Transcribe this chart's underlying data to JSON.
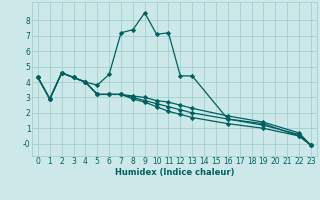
{
  "xlabel": "Humidex (Indice chaleur)",
  "background_color": "#cce8e8",
  "line_color": "#006060",
  "grid_color": "#99cccc",
  "xlim": [
    -0.5,
    23.5
  ],
  "ylim": [
    -0.8,
    9.2
  ],
  "xticks": [
    0,
    1,
    2,
    3,
    4,
    5,
    6,
    7,
    8,
    9,
    10,
    11,
    12,
    13,
    14,
    15,
    16,
    17,
    18,
    19,
    20,
    21,
    22,
    23
  ],
  "yticks": [
    0,
    1,
    2,
    3,
    4,
    5,
    6,
    7,
    8
  ],
  "ytick_labels": [
    "-0",
    "1",
    "2",
    "3",
    "4",
    "5",
    "6",
    "7",
    "8"
  ],
  "series": [
    {
      "x": [
        0,
        1,
        2,
        3,
        4,
        5,
        6,
        7,
        8,
        9,
        10,
        11,
        12,
        13,
        16,
        19,
        22,
        23
      ],
      "y": [
        4.3,
        2.9,
        4.6,
        4.3,
        4.0,
        3.8,
        4.5,
        7.2,
        7.4,
        8.5,
        7.1,
        7.2,
        4.4,
        4.4,
        1.6,
        1.3,
        0.5,
        -0.1
      ]
    },
    {
      "x": [
        0,
        1,
        2,
        3,
        4,
        5,
        6,
        7,
        8,
        9,
        10,
        11,
        12,
        13,
        16,
        19,
        22,
        23
      ],
      "y": [
        4.3,
        2.9,
        4.6,
        4.3,
        4.0,
        3.2,
        3.2,
        3.2,
        3.1,
        3.0,
        2.8,
        2.7,
        2.5,
        2.3,
        1.8,
        1.4,
        0.7,
        -0.1
      ]
    },
    {
      "x": [
        0,
        1,
        2,
        3,
        4,
        5,
        6,
        7,
        8,
        9,
        10,
        11,
        12,
        13,
        16,
        19,
        22,
        23
      ],
      "y": [
        4.3,
        2.9,
        4.6,
        4.3,
        4.0,
        3.2,
        3.2,
        3.2,
        3.0,
        2.8,
        2.6,
        2.4,
        2.2,
        2.0,
        1.6,
        1.2,
        0.6,
        -0.1
      ]
    },
    {
      "x": [
        0,
        1,
        2,
        3,
        4,
        5,
        6,
        7,
        8,
        9,
        10,
        11,
        12,
        13,
        16,
        19,
        22,
        23
      ],
      "y": [
        4.3,
        2.9,
        4.6,
        4.3,
        4.0,
        3.2,
        3.2,
        3.2,
        2.9,
        2.7,
        2.4,
        2.1,
        1.9,
        1.7,
        1.3,
        1.0,
        0.5,
        -0.1
      ]
    }
  ],
  "xlabel_fontsize": 6,
  "tick_fontsize": 5.5,
  "linewidth": 0.9,
  "markersize": 2.2
}
